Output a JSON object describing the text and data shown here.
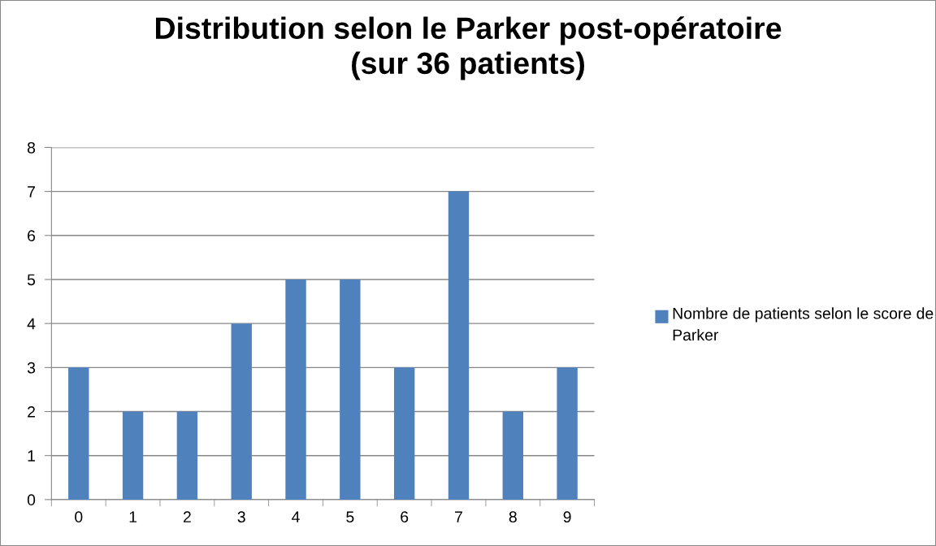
{
  "chart_data": {
    "type": "bar",
    "title": "Distribution selon le Parker post-opératoire\n(sur 36 patients)",
    "categories": [
      "0",
      "1",
      "2",
      "3",
      "4",
      "5",
      "6",
      "7",
      "8",
      "9"
    ],
    "series": [
      {
        "name": "Nombre de patients selon le score de Parker",
        "color": "#4f81bd",
        "values": [
          3,
          2,
          2,
          4,
          5,
          5,
          3,
          7,
          2,
          3
        ]
      }
    ],
    "ylim": [
      0,
      8
    ],
    "yticks": [
      0,
      1,
      2,
      3,
      4,
      5,
      6,
      7,
      8
    ],
    "grid": "y",
    "legend": "right"
  }
}
